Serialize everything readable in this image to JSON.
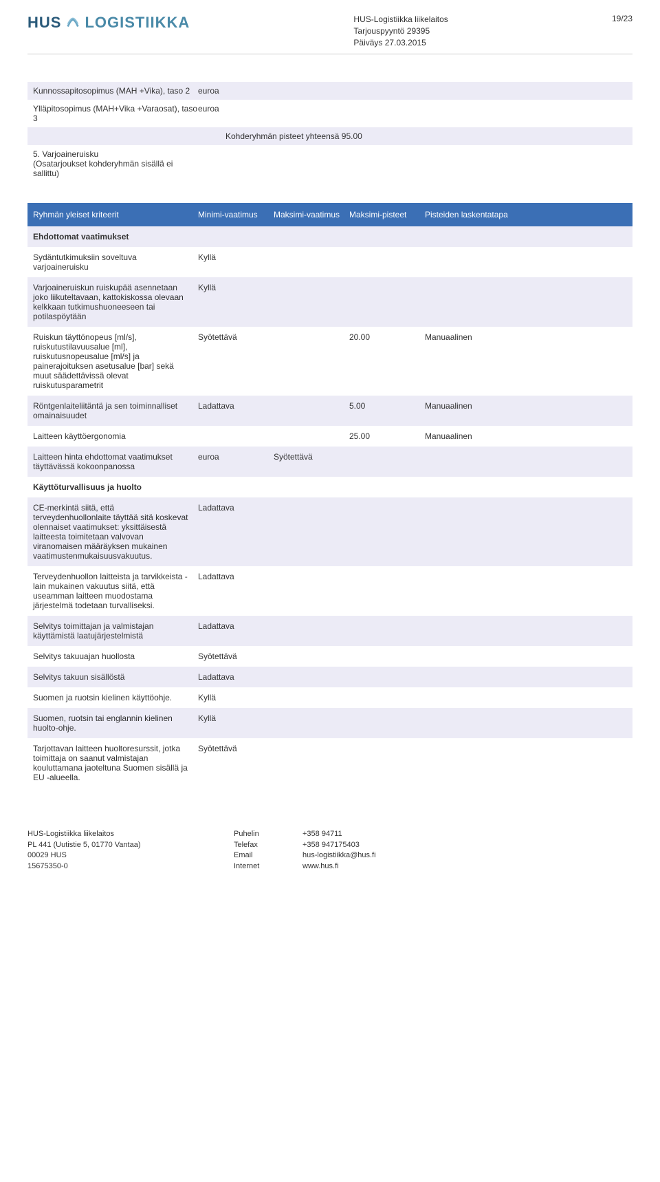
{
  "header": {
    "logo_part1": "HUS",
    "logo_part2": "LOGISTIIKKA",
    "org": "HUS-Logistiikka liikelaitos",
    "doc": "Tarjouspyyntö 29395",
    "date": "Päiväys 27.03.2015",
    "page": "19/23"
  },
  "top_rows": [
    {
      "label": "Kunnossapitosopimus (MAH +Vika), taso 2",
      "unit": "euroa",
      "bg": "lavender"
    },
    {
      "label": "Ylläpitosopimus (MAH+Vika +Varaosat), taso 3",
      "unit": "euroa",
      "bg": "white"
    }
  ],
  "kohderyhma_line": "Kohderyhmän pisteet yhteensä 95.00",
  "group5": {
    "num": "5. Varjoaineruisku",
    "note": "(Osatarjoukset kohderyhmän sisällä ei sallittu)"
  },
  "band": {
    "c1": "Ryhmän yleiset kriteerit",
    "c2": "Minimi-vaatimus",
    "c3": "Maksimi-vaatimus",
    "c4": "Maksimi-pisteet",
    "c5": "Pisteiden laskentatapa"
  },
  "subheader1": "Ehdottomat vaatimukset",
  "criteria": [
    {
      "c1": "Sydäntutkimuksiin soveltuva varjoaineruisku",
      "c2": "Kyllä",
      "c3": "",
      "c4": "",
      "c5": "",
      "bg": "white"
    },
    {
      "c1": "Varjoaineruiskun ruiskupää asennetaan joko liikuteltavaan, kattokiskossa olevaan kelkkaan tutkimushuoneeseen tai potilaspöytään",
      "c2": "Kyllä",
      "c3": "",
      "c4": "",
      "c5": "",
      "bg": "lavender"
    },
    {
      "c1": "Ruiskun täyttönopeus [ml/s], ruiskutustilavuusalue [ml], ruiskutusnopeusalue [ml/s] ja painerajoituksen asetusalue [bar] sekä muut säädettävissä olevat ruiskutusparametrit",
      "c2": "Syötettävä",
      "c3": "",
      "c4": "20.00",
      "c5": "Manuaalinen",
      "bg": "white"
    },
    {
      "c1": "Röntgenlaiteliitäntä ja sen toiminnalliset omainaisuudet",
      "c2": "Ladattava",
      "c3": "",
      "c4": "5.00",
      "c5": "Manuaalinen",
      "bg": "lavender"
    },
    {
      "c1": "Laitteen käyttöergonomia",
      "c2": "",
      "c3": "",
      "c4": "25.00",
      "c5": "Manuaalinen",
      "bg": "white"
    }
  ],
  "price_row": {
    "c1": "Laitteen hinta ehdottomat vaatimukset täyttävässä kokoonpanossa",
    "unit": "euroa",
    "c2": "Syötettävä",
    "bg": "lavender"
  },
  "subheader2": "Käyttöturvallisuus ja huolto",
  "criteria2": [
    {
      "c1": "CE-merkintä siitä, että terveydenhuollonlaite täyttää sitä koskevat olennaiset vaatimukset: yksittäisestä laitteesta toimitetaan valvovan viranomaisen määräyksen mukainen vaatimustenmukaisuusvakuutus.",
      "c2": "Ladattava",
      "bg": "lavender"
    },
    {
      "c1": "Terveydenhuollon laitteista ja tarvikkeista -lain mukainen vakuutus siitä, että useamman laitteen muodostama järjestelmä todetaan turvalliseksi.",
      "c2": "Ladattava",
      "bg": "white"
    },
    {
      "c1": "Selvitys toimittajan ja valmistajan käyttämistä laatujärjestelmistä",
      "c2": "Ladattava",
      "bg": "lavender"
    },
    {
      "c1": "Selvitys takuuajan huollosta",
      "c2": "Syötettävä",
      "bg": "white"
    },
    {
      "c1": "Selvitys takuun sisällöstä",
      "c2": "Ladattava",
      "bg": "lavender"
    },
    {
      "c1": "Suomen ja ruotsin kielinen käyttöohje.",
      "c2": "Kyllä",
      "bg": "white"
    },
    {
      "c1": "Suomen, ruotsin tai englannin kielinen huolto-ohje.",
      "c2": "Kyllä",
      "bg": "lavender"
    },
    {
      "c1": "Tarjottavan laitteen huoltoresurssit, jotka toimittaja on saanut valmistajan kouluttamana jaoteltuna Suomen sisällä ja EU -alueella.",
      "c2": "Syötettävä",
      "bg": "white"
    }
  ],
  "footer": {
    "addr": [
      "HUS-Logistiikka liikelaitos",
      "PL 441 (Uutistie 5, 01770 Vantaa)",
      "00029 HUS",
      "15675350-0"
    ],
    "labels": [
      "Puhelin",
      "Telefax",
      "Email",
      "Internet"
    ],
    "values": [
      "+358 94711",
      "+358 947175403",
      "hus-logistiikka@hus.fi",
      "www.hus.fi"
    ]
  },
  "colors": {
    "band_bg": "#3b6fb5",
    "lavender": "#ecebf6",
    "logo_dark": "#2a5a7a",
    "logo_light": "#4a8aa8"
  }
}
